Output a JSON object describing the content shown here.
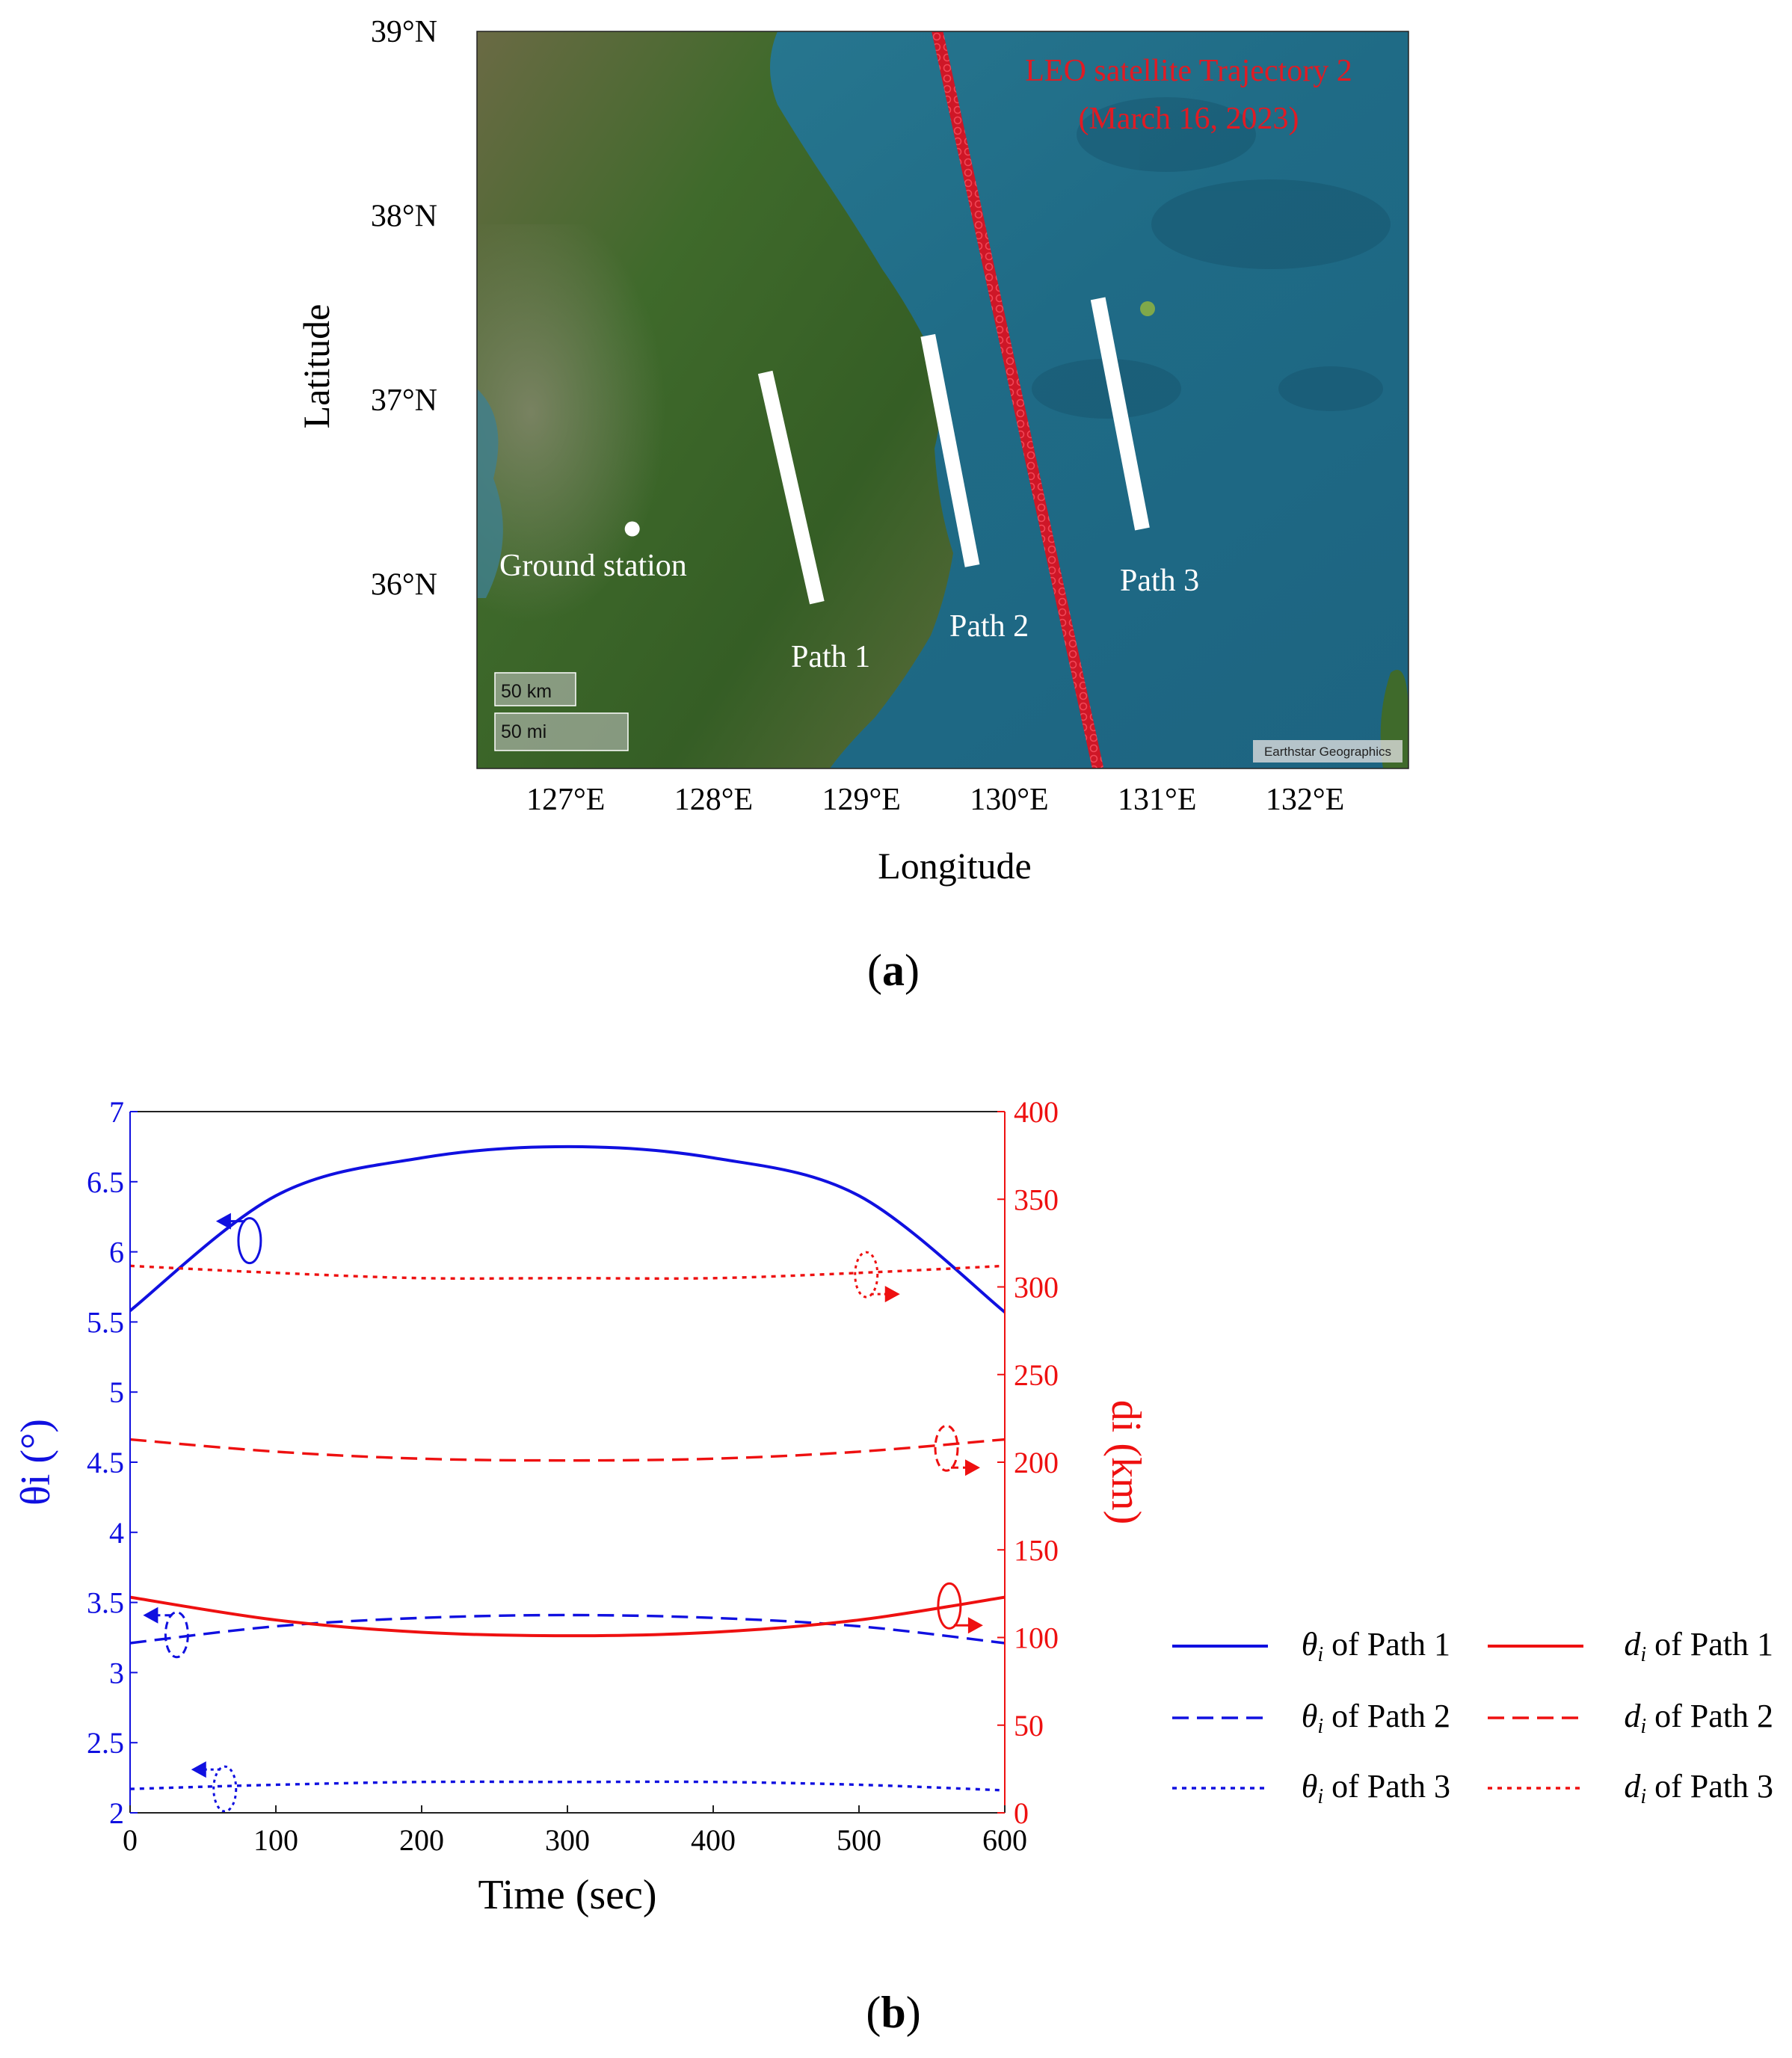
{
  "panel_a": {
    "label_open": "(",
    "label_letter": "a",
    "label_close": ")",
    "map": {
      "trajectory_label_line1": "LEO satellite Trajectory 2",
      "trajectory_label_line2": "(March 16, 2023)",
      "ground_station_label": "Ground station",
      "path_labels": [
        "Path 1",
        "Path 2",
        "Path 3"
      ],
      "scale_km": "50 km",
      "scale_mi": "50 mi",
      "attribution": "Earthstar Geographics",
      "colors": {
        "trajectory": "#e01b24",
        "path": "#ffffff",
        "ocean": "#1f6f8b",
        "land": "#3e6a2a"
      }
    },
    "chart_data": {
      "type": "map",
      "xlabel": "Longitude",
      "ylabel": "Latitude",
      "x_ticks": [
        "127°E",
        "128°E",
        "129°E",
        "130°E",
        "131°E",
        "132°E"
      ],
      "y_ticks": [
        "39°N",
        "38°N",
        "37°N",
        "36°N"
      ],
      "xlim": [
        126.4,
        132.7
      ],
      "ylim": [
        35.0,
        39.0
      ],
      "ground_station": {
        "lon": 127.45,
        "lat": 36.3
      },
      "paths": [
        {
          "name": "Path 1",
          "start": {
            "lon": 128.35,
            "lat": 37.15
          },
          "end": {
            "lon": 128.7,
            "lat": 35.9
          }
        },
        {
          "name": "Path 2",
          "start": {
            "lon": 129.45,
            "lat": 37.35
          },
          "end": {
            "lon": 129.75,
            "lat": 36.1
          }
        },
        {
          "name": "Path 3",
          "start": {
            "lon": 130.6,
            "lat": 37.55
          },
          "end": {
            "lon": 130.9,
            "lat": 36.3
          }
        }
      ],
      "trajectory": {
        "name": "LEO satellite Trajectory 2",
        "start": {
          "lon": 129.5,
          "lat": 39.05
        },
        "end": {
          "lon": 130.6,
          "lat": 35.0
        }
      }
    }
  },
  "panel_b": {
    "label_open": "(",
    "label_letter": "b",
    "label_close": ")",
    "colors": {
      "theta": "#1010e0",
      "d": "#ee1010"
    },
    "chart_data": {
      "type": "line",
      "xlabel": "Time (sec)",
      "ylabel_left": "θi (°)",
      "ylabel_right": "di (km)",
      "xlim": [
        0,
        600
      ],
      "ylim_left": [
        2,
        7
      ],
      "ylim_right": [
        0,
        400
      ],
      "x_ticks": [
        0,
        100,
        200,
        300,
        400,
        500,
        600
      ],
      "y_ticks_left": [
        2,
        2.5,
        3,
        3.5,
        4,
        4.5,
        5,
        5.5,
        6,
        6.5,
        7
      ],
      "y_ticks_right": [
        0,
        50,
        100,
        150,
        200,
        250,
        300,
        350,
        400
      ],
      "x": [
        0,
        100,
        200,
        300,
        400,
        500,
        600
      ],
      "series": [
        {
          "symbol": "θ",
          "sub": "i",
          "name": " of Path 1",
          "axis": "left",
          "dash": "solid",
          "values": [
            5.58,
            6.4,
            6.67,
            6.75,
            6.67,
            6.4,
            5.57
          ]
        },
        {
          "symbol": "θ",
          "sub": "i",
          "name": " of Path 2",
          "axis": "left",
          "dash": "dashed",
          "values": [
            3.21,
            3.33,
            3.39,
            3.41,
            3.39,
            3.33,
            3.21
          ]
        },
        {
          "symbol": "θ",
          "sub": "i",
          "name": " of Path 3",
          "axis": "left",
          "dash": "dotted",
          "values": [
            2.17,
            2.2,
            2.22,
            2.22,
            2.22,
            2.2,
            2.16
          ]
        },
        {
          "symbol": "d",
          "sub": "i",
          "name": " of Path 1",
          "axis": "right",
          "dash": "solid",
          "values": [
            123,
            110,
            103,
            101,
            103,
            110,
            123
          ]
        },
        {
          "symbol": "d",
          "sub": "i",
          "name": " of Path 2",
          "axis": "right",
          "dash": "dashed",
          "values": [
            213,
            206,
            202,
            201,
            202,
            206,
            213
          ]
        },
        {
          "symbol": "d",
          "sub": "i",
          "name": " of Path 3",
          "axis": "right",
          "dash": "dotted",
          "values": [
            312,
            308,
            305,
            305,
            305,
            308,
            312
          ]
        }
      ]
    }
  }
}
